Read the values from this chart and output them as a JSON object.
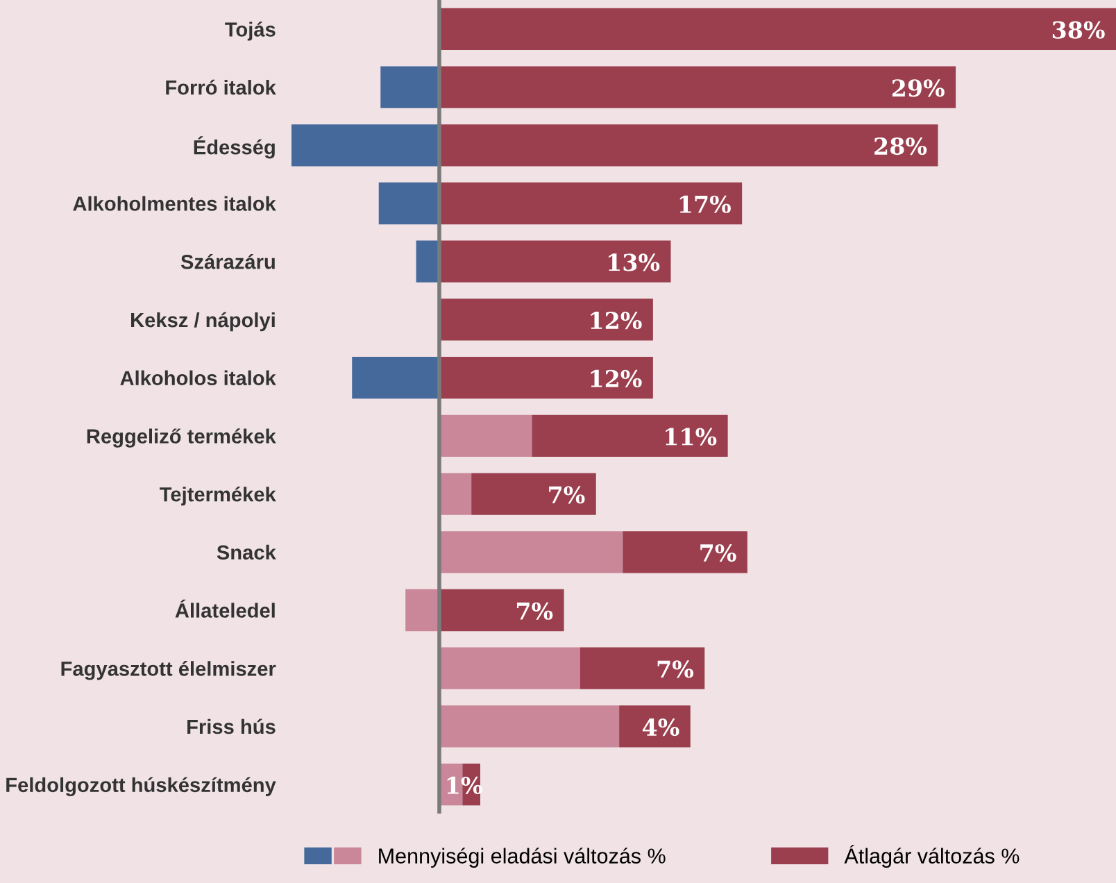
{
  "chart_data": {
    "type": "bar",
    "orientation": "horizontal",
    "stacked": true,
    "tick_labels": "y",
    "legend": "bottom",
    "categories": [
      "Tojás",
      "Forró italok",
      "Édesség",
      "Alkoholmentes italok",
      "Szárazáru",
      "Keksz / nápolyi",
      "Alkoholos italok",
      "Reggeliző termékek",
      "Tejtermékek",
      "Snack",
      "Állateledel",
      "Fagyasztott élelmiszer",
      "Friss hús",
      "Feldolgozott húskészítmény"
    ],
    "series": [
      {
        "name": "Mennyiségi eladási változás %",
        "colors": [
          null,
          "#44699a",
          "#44699a",
          "#44699a",
          "#44699a",
          null,
          "#44699a",
          "#c98799",
          "#c98799",
          "#c98799",
          "#c98799",
          "#c98799",
          "#c98799",
          "#c98799"
        ],
        "values": [
          null,
          -3.3,
          -8.3,
          -3.4,
          -1.3,
          null,
          -4.9,
          5.2,
          1.8,
          10.3,
          -1.9,
          7.9,
          10.1,
          1.3
        ]
      },
      {
        "name": "Átlagár változás %",
        "color": "#9b3f4f",
        "values": [
          38,
          29,
          28,
          17,
          13,
          12,
          12,
          11,
          7,
          7,
          7,
          7,
          4,
          1
        ],
        "value_labels": [
          "38%",
          "29%",
          "28%",
          "17%",
          "13%",
          "12%",
          "12%",
          "11%",
          "7%",
          "7%",
          "7%",
          "7%",
          "4%",
          "1%"
        ]
      }
    ]
  }
}
